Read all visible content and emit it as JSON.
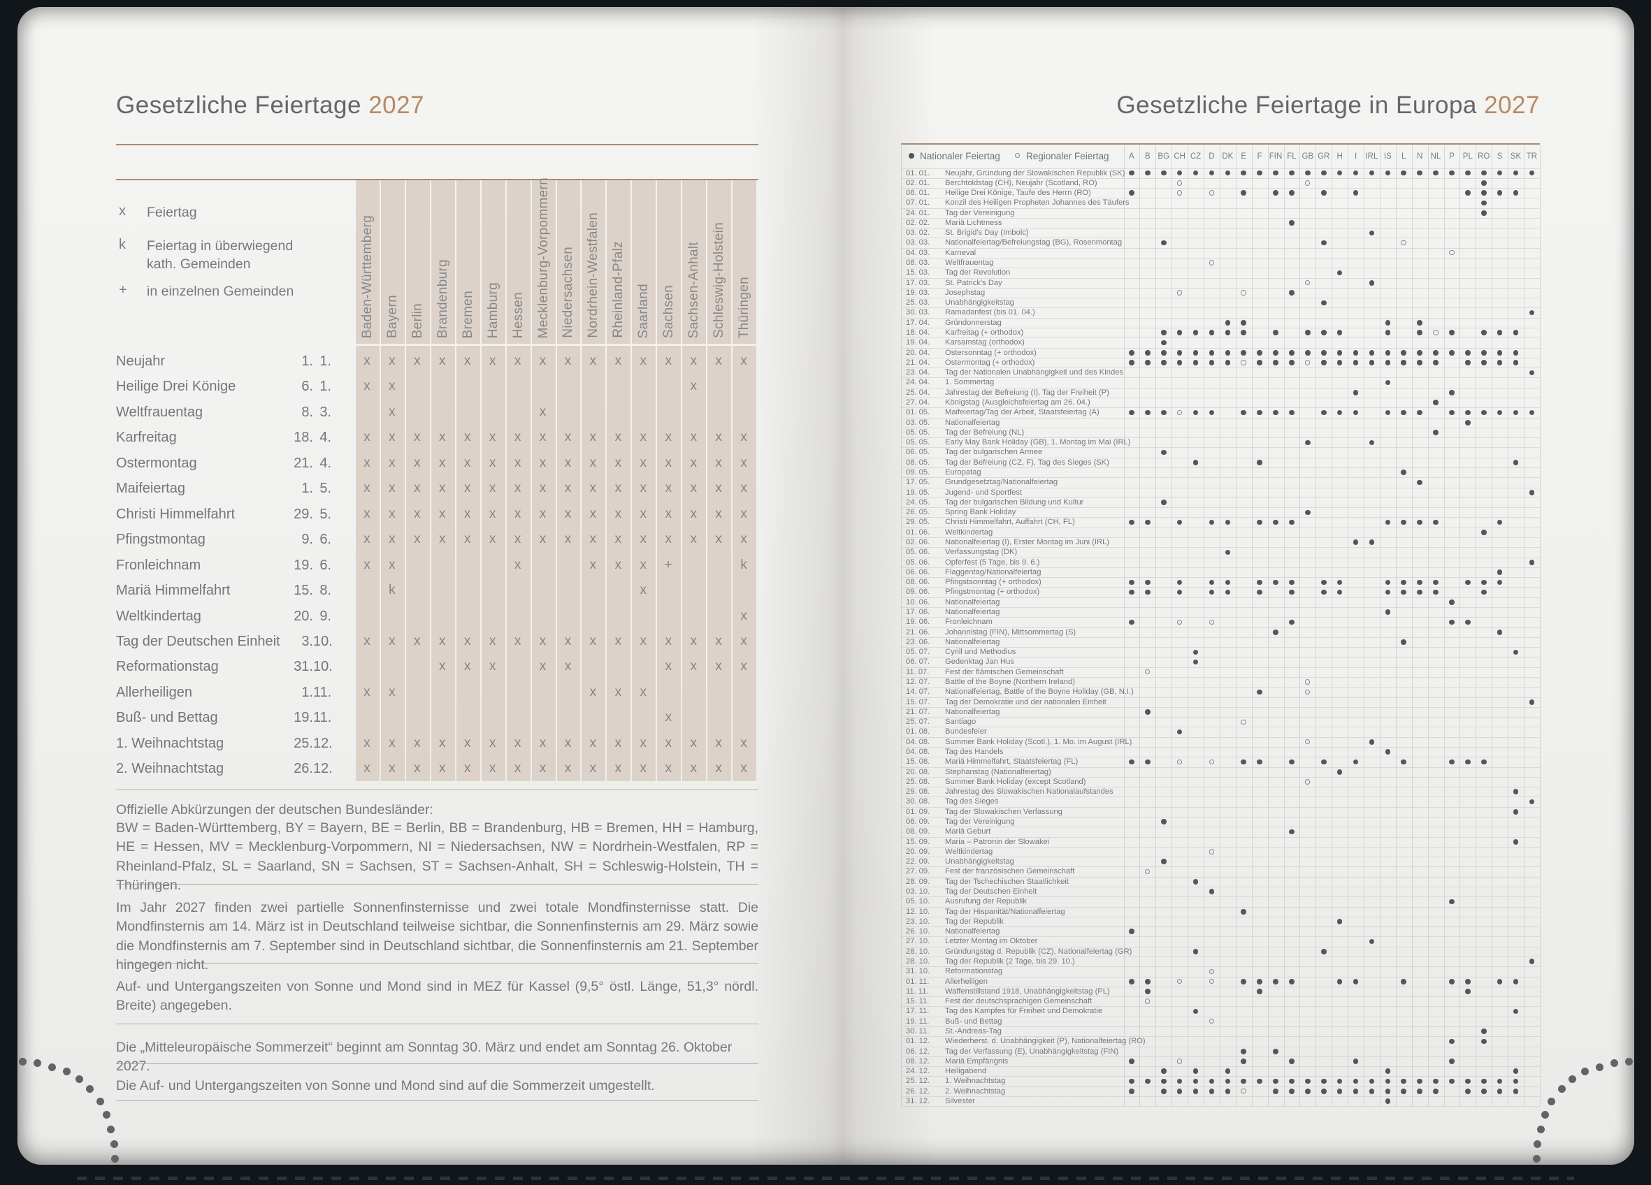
{
  "colors": {
    "accent_copper": "#b78a64",
    "band_tan": "#ddd2c9",
    "title_gray": "#63676b",
    "text_gray": "#76787b",
    "dot_gray": "#54575a",
    "rule_brown": "#a98b71",
    "cover_dark": "#11161a"
  },
  "left_page": {
    "title": "Gesetzliche Feiertage",
    "year": "2027",
    "legend": [
      {
        "symbol": "x",
        "label": "Feiertag"
      },
      {
        "symbol": "k",
        "label": "Feiertag in überwiegend kath. Gemeinden"
      },
      {
        "symbol": "+",
        "label": "in einzelnen Gemeinden"
      }
    ],
    "states": [
      "Baden-Württemberg",
      "Bayern",
      "Berlin",
      "Brandenburg",
      "Bremen",
      "Hamburg",
      "Hessen",
      "Mecklenburg-Vorpommern",
      "Niedersachsen",
      "Nordrhein-Westfalen",
      "Rheinland-Pfalz",
      "Saarland",
      "Sachsen",
      "Sachsen-Anhalt",
      "Schleswig-Holstein",
      "Thüringen"
    ],
    "rows": [
      {
        "name": "Neujahr",
        "day": "1.",
        "month": "1.",
        "marks": "xxxxxxxxxxxxxxxx"
      },
      {
        "name": "Heilige Drei Könige",
        "day": "6.",
        "month": "1.",
        "marks": "xx...........x.."
      },
      {
        "name": "Weltfrauentag",
        "day": "8.",
        "month": "3.",
        "marks": ".x.....x........"
      },
      {
        "name": "Karfreitag",
        "day": "18.",
        "month": "4.",
        "marks": "xxxxxxxxxxxxxxxx"
      },
      {
        "name": "Ostermontag",
        "day": "21.",
        "month": "4.",
        "marks": "xxxxxxxxxxxxxxxx"
      },
      {
        "name": "Maifeiertag",
        "day": "1.",
        "month": "5.",
        "marks": "xxxxxxxxxxxxxxxx"
      },
      {
        "name": "Christi Himmelfahrt",
        "day": "29.",
        "month": "5.",
        "marks": "xxxxxxxxxxxxxxxx"
      },
      {
        "name": "Pfingstmontag",
        "day": "9.",
        "month": "6.",
        "marks": "xxxxxxxxxxxxxxxx"
      },
      {
        "name": "Fronleichnam",
        "day": "19.",
        "month": "6.",
        "marks": "xx....x..xxx+..k"
      },
      {
        "name": "Mariä Himmelfahrt",
        "day": "15.",
        "month": "8.",
        "marks": ".k.........x...."
      },
      {
        "name": "Weltkindertag",
        "day": "20.",
        "month": "9.",
        "marks": "...............x"
      },
      {
        "name": "Tag der Deutschen Einheit",
        "day": "3.",
        "month": "10.",
        "marks": "xxxxxxxxxxxxxxxx"
      },
      {
        "name": "Reformationstag",
        "day": "31.",
        "month": "10.",
        "marks": "...xxx.xx...xxxx"
      },
      {
        "name": "Allerheiligen",
        "day": "1.",
        "month": "11.",
        "marks": "xx.......xxx...."
      },
      {
        "name": "Buß- und Bettag",
        "day": "19.",
        "month": "11.",
        "marks": "............x..."
      },
      {
        "name": "1. Weihnachtstag",
        "day": "25.",
        "month": "12.",
        "marks": "xxxxxxxxxxxxxxxx"
      },
      {
        "name": "2. Weihnachtstag",
        "day": "26.",
        "month": "12.",
        "marks": "xxxxxxxxxxxxxxxx"
      }
    ],
    "paragraphs": {
      "p1a": "Offizielle Abkürzungen der deutschen Bundesländer:",
      "p1b": "BW = Baden-Württemberg, BY = Bayern, BE = Berlin, BB = Brandenburg, HB = Bremen, HH = Hamburg, HE = Hessen, MV = Mecklenburg-Vorpommern, NI = Niedersachsen, NW = Nordrhein-Westfalen, RP = Rheinland-Pfalz, SL = Saarland, SN = Sachsen, ST = Sachsen-Anhalt, SH = Schleswig-Holstein, TH = Thüringen.",
      "p2": "Im Jahr 2027 finden zwei partielle Sonnenfinsternisse und zwei totale Mondfinsternisse statt. Die Mondfinsternis am 14. März ist in Deutschland teilweise sichtbar, die Sonnenfinsternis am 29. März sowie die Mondfinsternis am 7. September sind in Deutschland sichtbar, die Sonnenfinsternis am 21. September hingegen nicht.",
      "p3": "Auf- und Untergangszeiten von Sonne und Mond sind in MEZ für Kassel (9,5° östl. Länge, 51,3° nördl. Breite) angegeben.",
      "p4": "Die „Mitteleuropäische Sommerzeit“ beginnt am Sonntag 30. März und endet am Sonntag 26. Oktober 2027.",
      "p5": "Die Auf- und Untergangszeiten von Sonne und Mond sind auf die Sommerzeit umgestellt."
    }
  },
  "right_page": {
    "title": "Gesetzliche Feiertage in Europa",
    "year": "2027",
    "legend_national": "Nationaler Feiertag",
    "legend_regional": "Regionaler Feiertag",
    "countries": [
      "A",
      "B",
      "BG",
      "CH",
      "CZ",
      "D",
      "DK",
      "E",
      "F",
      "FIN",
      "FL",
      "GB",
      "GR",
      "H",
      "I",
      "IRL",
      "IS",
      "L",
      "N",
      "NL",
      "P",
      "PL",
      "RO",
      "S",
      "SK",
      "TR"
    ],
    "rows": [
      {
        "d": "01. 01.",
        "n": "Neujahr, Gründung der Slowakischen Republik (SK)",
        "f": "A B BG CH CZ D DK E F FIN FL GB GR H I IRL IS L N NL P PL RO S SK TR"
      },
      {
        "d": "02. 01.",
        "n": "Berchtoldstag (CH), Neujahr (Scotland, RO)",
        "f": "RO",
        "o": "CH GB"
      },
      {
        "d": "06. 01.",
        "n": "Heilige Drei Könige, Taufe des Herrn (RO)",
        "f": "A E FIN FL GR I PL RO S SK",
        "o": "CH D"
      },
      {
        "d": "07. 01.",
        "n": "Konzil des Heiligen Propheten Johannes des Täufers",
        "f": "RO"
      },
      {
        "d": "24. 01.",
        "n": "Tag der Vereinigung",
        "f": "RO"
      },
      {
        "d": "02. 02.",
        "n": "Mariä Lichtmess",
        "f": "FL"
      },
      {
        "d": "03. 02.",
        "n": "St. Brigid's Day (Imbolc)",
        "f": "IRL"
      },
      {
        "d": "03. 03.",
        "n": "Nationalfeiertag/Befreiungstag (BG), Rosenmontag",
        "f": "BG GR",
        "o": "L"
      },
      {
        "d": "04. 03.",
        "n": "Karneval",
        "o": "P"
      },
      {
        "d": "08. 03.",
        "n": "Weltfrauentag",
        "o": "D"
      },
      {
        "d": "15. 03.",
        "n": "Tag der Revolution",
        "f": "H"
      },
      {
        "d": "17. 03.",
        "n": "St. Patrick's Day",
        "f": "IRL",
        "o": "GB"
      },
      {
        "d": "19. 03.",
        "n": "Josephstag",
        "f": "FL",
        "o": "CH E"
      },
      {
        "d": "25. 03.",
        "n": "Unabhängigkeitstag",
        "f": "GR"
      },
      {
        "d": "30. 03.",
        "n": "Ramadanfest (bis 01. 04.)",
        "f": "TR"
      },
      {
        "d": "17. 04.",
        "n": "Gründonnerstag",
        "f": "DK E IS N"
      },
      {
        "d": "18. 04.",
        "n": "Karfreitag (+ orthodox)",
        "f": "BG CH CZ D DK E FIN GB GR H IS N P RO S SK",
        "o": "NL"
      },
      {
        "d": "19. 04.",
        "n": "Karsamstag (orthodox)",
        "f": "BG"
      },
      {
        "d": "20. 04.",
        "n": "Ostersonntag (+ orthodox)",
        "f": "A B BG CH CZ D DK E F FIN FL GB GR H I IRL IS L N NL P PL RO S SK"
      },
      {
        "d": "21. 04.",
        "n": "Ostermontag (+ orthodox)",
        "f": "A B BG CH CZ D DK F FIN FL GR H I IRL IS L N NL PL RO S SK",
        "o": "E GB"
      },
      {
        "d": "23. 04.",
        "n": "Tag der Nationalen Unabhängigkeit und des Kindes",
        "f": "TR"
      },
      {
        "d": "24. 04.",
        "n": "1. Sommertag",
        "f": "IS"
      },
      {
        "d": "25. 04.",
        "n": "Jahrestag der Befreiung (I), Tag der Freiheit (P)",
        "f": "I P"
      },
      {
        "d": "27. 04.",
        "n": "Königstag (Ausgleichsfeiertag am 26. 04.)",
        "f": "NL"
      },
      {
        "d": "01. 05.",
        "n": "Maifeiertag/Tag der Arbeit, Staatsfeiertag (A)",
        "f": "A B BG CZ D E F FIN FL GR H I IS L N P PL RO S SK TR",
        "o": "CH"
      },
      {
        "d": "03. 05.",
        "n": "Nationalfeiertag",
        "f": "PL"
      },
      {
        "d": "05. 05.",
        "n": "Tag der Befreiung (NL)",
        "f": "NL"
      },
      {
        "d": "05. 05.",
        "n": "Early May Bank Holiday (GB), 1. Montag im Mai (IRL)",
        "f": "GB IRL"
      },
      {
        "d": "06. 05.",
        "n": "Tag der bulgarischen Armee",
        "f": "BG"
      },
      {
        "d": "08. 05.",
        "n": "Tag der Befreiung (CZ, F), Tag des Sieges (SK)",
        "f": "CZ F SK"
      },
      {
        "d": "09. 05.",
        "n": "Europatag",
        "f": "L"
      },
      {
        "d": "17. 05.",
        "n": "Grundgesetztag/Nationalfeiertag",
        "f": "N"
      },
      {
        "d": "19. 05.",
        "n": "Jugend- und Sportfest",
        "f": "TR"
      },
      {
        "d": "24. 05.",
        "n": "Tag der bulgarischen Bildung und Kultur",
        "f": "BG"
      },
      {
        "d": "26. 05.",
        "n": "Spring Bank Holiday",
        "f": "GB"
      },
      {
        "d": "29. 05.",
        "n": "Christi Himmelfahrt, Auffahrt (CH, FL)",
        "f": "A B CH D DK F FIN FL IS L N NL S"
      },
      {
        "d": "01. 06.",
        "n": "Weltkindertag",
        "f": "RO"
      },
      {
        "d": "02. 06.",
        "n": "Nationalfeiertag (I), Erster Montag im Juni (IRL)",
        "f": "I IRL"
      },
      {
        "d": "05. 06.",
        "n": "Verfassungstag (DK)",
        "f": "DK"
      },
      {
        "d": "05. 06.",
        "n": "Opferfest (5 Tage, bis 9. 6.)",
        "f": "TR"
      },
      {
        "d": "06. 06.",
        "n": "Flaggentag/Nationalfeiertag",
        "f": "S"
      },
      {
        "d": "08. 06.",
        "n": "Pfingstsonntag (+ orthodox)",
        "f": "A B CH D DK F FIN FL GR H IS L N NL PL RO S"
      },
      {
        "d": "09. 06.",
        "n": "Pfingstmontag (+ orthodox)",
        "f": "A B CH D DK F FL GR H IS L N NL RO"
      },
      {
        "d": "10. 06.",
        "n": "Nationalfeiertag",
        "f": "P"
      },
      {
        "d": "17. 06.",
        "n": "Nationalfeiertag",
        "f": "IS"
      },
      {
        "d": "19. 06.",
        "n": "Fronleichnam",
        "f": "A FL P PL",
        "o": "CH D"
      },
      {
        "d": "21. 06.",
        "n": "Johannistag (FIN), Mittsommertag (S)",
        "f": "FIN S"
      },
      {
        "d": "23. 06.",
        "n": "Nationalfeiertag",
        "f": "L"
      },
      {
        "d": "05. 07.",
        "n": "Cyrill und Methodius",
        "f": "CZ SK"
      },
      {
        "d": "06. 07.",
        "n": "Gedenktag Jan Hus",
        "f": "CZ"
      },
      {
        "d": "11. 07.",
        "n": "Fest der flämischen Gemeinschaft",
        "o": "B"
      },
      {
        "d": "12. 07.",
        "n": "Battle of the Boyne (Northern Ireland)",
        "o": "GB"
      },
      {
        "d": "14. 07.",
        "n": "Nationalfeiertag, Battle of the Boyne Holiday (GB, N.I.)",
        "f": "F",
        "o": "GB"
      },
      {
        "d": "15. 07.",
        "n": "Tag der Demokratie und der nationalen Einheit",
        "f": "TR"
      },
      {
        "d": "21. 07.",
        "n": "Nationalfeiertag",
        "f": "B"
      },
      {
        "d": "25. 07.",
        "n": "Santiago",
        "o": "E"
      },
      {
        "d": "01. 08.",
        "n": "Bundesfeier",
        "f": "CH"
      },
      {
        "d": "04. 08.",
        "n": "Summer Bank Holiday (Scotl.), 1. Mo. im August (IRL)",
        "f": "IRL",
        "o": "GB"
      },
      {
        "d": "04. 08.",
        "n": "Tag des Handels",
        "f": "IS"
      },
      {
        "d": "15. 08.",
        "n": "Mariä Himmelfahrt, Staatsfeiertag (FL)",
        "f": "A B E F FL GR I L P PL RO",
        "o": "CH D"
      },
      {
        "d": "20. 08.",
        "n": "Stephanstag (Nationalfeiertag)",
        "f": "H"
      },
      {
        "d": "25. 08.",
        "n": "Summer Bank Holiday (except Scotland)",
        "o": "GB"
      },
      {
        "d": "29. 08.",
        "n": "Jahrestag des Slowakischen Nationalaufstandes",
        "f": "SK"
      },
      {
        "d": "30. 08.",
        "n": "Tag des Sieges",
        "f": "TR"
      },
      {
        "d": "01. 09.",
        "n": "Tag der Slowakischen Verfassung",
        "f": "SK"
      },
      {
        "d": "06. 09.",
        "n": "Tag der Vereinigung",
        "f": "BG"
      },
      {
        "d": "08. 09.",
        "n": "Mariä Geburt",
        "f": "FL"
      },
      {
        "d": "15. 09.",
        "n": "Maria – Patronin der Slowakei",
        "f": "SK"
      },
      {
        "d": "20. 09.",
        "n": "Weltkindertag",
        "o": "D"
      },
      {
        "d": "22. 09.",
        "n": "Unabhängigkeitstag",
        "f": "BG"
      },
      {
        "d": "27. 09.",
        "n": "Fest der französischen Gemeinschaft",
        "o": "B"
      },
      {
        "d": "28. 09.",
        "n": "Tag der Tschechischen Staatlichkeit",
        "f": "CZ"
      },
      {
        "d": "03. 10.",
        "n": "Tag der Deutschen Einheit",
        "f": "D"
      },
      {
        "d": "05. 10.",
        "n": "Ausrufung der Republik",
        "f": "P"
      },
      {
        "d": "12. 10.",
        "n": "Tag der Hispanität/Nationalfeiertag",
        "f": "E"
      },
      {
        "d": "23. 10.",
        "n": "Tag der Republik",
        "f": "H"
      },
      {
        "d": "26. 10.",
        "n": "Nationalfeiertag",
        "f": "A"
      },
      {
        "d": "27. 10.",
        "n": "Letzter Montag im Oktober",
        "f": "IRL"
      },
      {
        "d": "28. 10.",
        "n": "Gründungstag d. Republik (CZ), Nationalfeiertag (GR)",
        "f": "CZ GR"
      },
      {
        "d": "28. 10.",
        "n": "Tag der Republik (2 Tage, bis 29. 10.)",
        "f": "TR"
      },
      {
        "d": "31. 10.",
        "n": "Reformationstag",
        "o": "D"
      },
      {
        "d": "01. 11.",
        "n": "Allerheiligen",
        "f": "A B E F FIN FL H I L P PL S SK",
        "o": "CH D"
      },
      {
        "d": "11. 11.",
        "n": "Waffenstillstand 1918, Unabhängigkeitstag (PL)",
        "f": "B F PL"
      },
      {
        "d": "15. 11.",
        "n": "Fest der deutschsprachigen Gemeinschaft",
        "o": "B"
      },
      {
        "d": "17. 11.",
        "n": "Tag des Kampfes für Freiheit und Demokratie",
        "f": "CZ SK"
      },
      {
        "d": "19. 11.",
        "n": "Buß- und Bettag",
        "o": "D"
      },
      {
        "d": "30. 11.",
        "n": "St.-Andreas-Tag",
        "f": "RO"
      },
      {
        "d": "01. 12.",
        "n": "Wiederherst. d. Unabhängigkeit (P), Nationalfeiertag (RO)",
        "f": "P RO"
      },
      {
        "d": "06. 12.",
        "n": "Tag der Verfassung (E), Unabhängigkeitstag (FIN)",
        "f": "E FIN"
      },
      {
        "d": "08. 12.",
        "n": "Mariä Empfängnis",
        "f": "A E FL I P",
        "o": "CH"
      },
      {
        "d": "24. 12.",
        "n": "Heiligabend",
        "f": "BG CZ DK IS SK"
      },
      {
        "d": "25. 12.",
        "n": "1. Weihnachtstag",
        "f": "A B BG CH CZ D DK E F FIN FL GB GR H I IRL IS L N NL P PL RO S SK"
      },
      {
        "d": "26. 12.",
        "n": "2. Weihnachtstag",
        "f": "A BG CH CZ D DK FIN FL GB GR H I IRL IS L N NL PL RO S SK",
        "o": "E"
      },
      {
        "d": "31. 12.",
        "n": "Silvester",
        "f": "IS"
      }
    ]
  }
}
